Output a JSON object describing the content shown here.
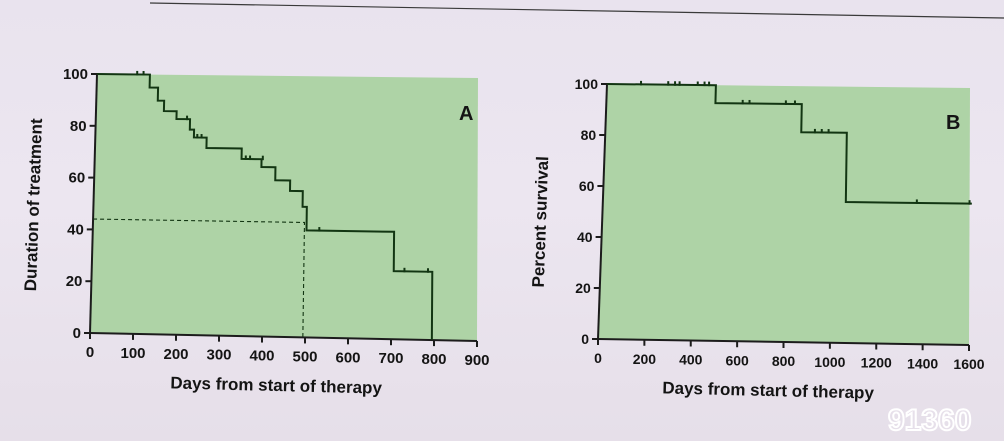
{
  "chart_data": [
    {
      "type": "line",
      "panel_label": "A",
      "xlabel": "Days from start of therapy",
      "ylabel": "Duration of treatment",
      "xlim": [
        0,
        900
      ],
      "ylim": [
        0,
        100
      ],
      "xticks": [
        0,
        100,
        200,
        300,
        400,
        500,
        600,
        700,
        800,
        900
      ],
      "yticks": [
        0,
        20,
        40,
        60,
        80,
        100
      ],
      "plot_color": "#aed3a6",
      "line_color": "#123512",
      "grid": false,
      "step": [
        [
          0,
          100
        ],
        [
          125,
          100
        ],
        [
          125,
          95
        ],
        [
          145,
          95
        ],
        [
          145,
          90
        ],
        [
          160,
          90
        ],
        [
          160,
          86
        ],
        [
          190,
          86
        ],
        [
          190,
          83
        ],
        [
          222,
          83
        ],
        [
          222,
          79
        ],
        [
          232,
          79
        ],
        [
          232,
          76
        ],
        [
          262,
          76
        ],
        [
          262,
          72
        ],
        [
          345,
          72
        ],
        [
          345,
          68
        ],
        [
          392,
          68
        ],
        [
          392,
          65
        ],
        [
          425,
          65
        ],
        [
          425,
          60
        ],
        [
          460,
          60
        ],
        [
          460,
          56
        ],
        [
          490,
          56
        ],
        [
          490,
          50
        ],
        [
          500,
          50
        ],
        [
          500,
          41
        ],
        [
          705,
          41
        ],
        [
          705,
          26
        ],
        [
          795,
          26
        ],
        [
          795,
          0
        ]
      ],
      "censored": [
        [
          95,
          100
        ],
        [
          110,
          100
        ],
        [
          215,
          83
        ],
        [
          240,
          76
        ],
        [
          250,
          76
        ],
        [
          355,
          68
        ],
        [
          365,
          68
        ],
        [
          395,
          68
        ],
        [
          530,
          41
        ],
        [
          730,
          26
        ],
        [
          785,
          26
        ]
      ],
      "median_line": {
        "y": 44,
        "x": 495
      }
    },
    {
      "type": "line",
      "panel_label": "B",
      "xlabel": "Days from start of therapy",
      "ylabel": "Percent survival",
      "xlim": [
        0,
        1600
      ],
      "ylim": [
        0,
        100
      ],
      "xticks": [
        0,
        200,
        400,
        600,
        800,
        1000,
        1200,
        1400,
        1600
      ],
      "yticks": [
        0,
        20,
        40,
        60,
        80,
        100
      ],
      "plot_color": "#aed3a6",
      "line_color": "#123512",
      "grid": false,
      "step": [
        [
          0,
          100
        ],
        [
          480,
          100
        ],
        [
          480,
          93
        ],
        [
          860,
          93
        ],
        [
          860,
          82
        ],
        [
          1060,
          82
        ],
        [
          1060,
          55
        ],
        [
          1610,
          55
        ]
      ],
      "censored": [
        [
          150,
          100
        ],
        [
          270,
          100
        ],
        [
          300,
          100
        ],
        [
          320,
          100
        ],
        [
          400,
          100
        ],
        [
          430,
          100
        ],
        [
          450,
          100
        ],
        [
          600,
          93
        ],
        [
          630,
          93
        ],
        [
          790,
          93
        ],
        [
          830,
          93
        ],
        [
          920,
          82
        ],
        [
          950,
          82
        ],
        [
          980,
          82
        ],
        [
          1370,
          55
        ],
        [
          1600,
          55
        ]
      ]
    }
  ],
  "watermark": {
    "text": "91360"
  }
}
